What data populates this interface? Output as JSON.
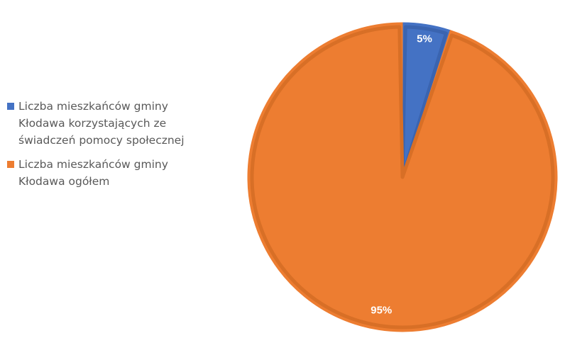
{
  "chart_data": {
    "type": "pie",
    "categories": [
      "Liczba mieszkańców gminy Kłodawa korzystających ze świadczeń pomocy społecznej",
      "Liczba mieszkańców gminy Kłodawa ogółem"
    ],
    "values": [
      5,
      95
    ],
    "data_labels": [
      "5%",
      "95%"
    ],
    "colors": [
      "#4472c4",
      "#ed7d31"
    ],
    "title": "",
    "legend_position": "left"
  }
}
